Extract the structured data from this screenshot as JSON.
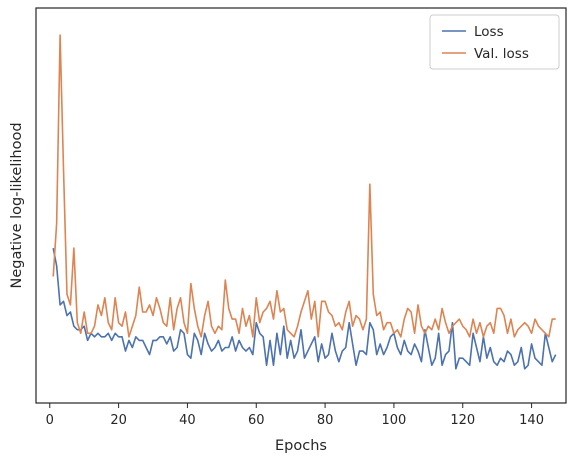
{
  "chart_data": {
    "type": "line",
    "xlabel": "Epochs",
    "ylabel": "Negative log-likelihood",
    "xlim": [
      -4,
      150
    ],
    "ylim": [
      0,
      1
    ],
    "x_ticks": [
      0,
      20,
      40,
      60,
      80,
      100,
      120,
      140
    ],
    "y_ticks_visible": false,
    "grid": false,
    "legend": "top-right",
    "x": [
      1,
      2,
      3,
      4,
      5,
      6,
      7,
      8,
      9,
      10,
      11,
      12,
      13,
      14,
      15,
      16,
      17,
      18,
      19,
      20,
      21,
      22,
      23,
      24,
      25,
      26,
      27,
      28,
      29,
      30,
      31,
      32,
      33,
      34,
      35,
      36,
      37,
      38,
      39,
      40,
      41,
      42,
      43,
      44,
      45,
      46,
      47,
      48,
      49,
      50,
      51,
      52,
      53,
      54,
      55,
      56,
      57,
      58,
      59,
      60,
      61,
      62,
      63,
      64,
      65,
      66,
      67,
      68,
      69,
      70,
      71,
      72,
      73,
      74,
      75,
      76,
      77,
      78,
      79,
      80,
      81,
      82,
      83,
      84,
      85,
      86,
      87,
      88,
      89,
      90,
      91,
      92,
      93,
      94,
      95,
      96,
      97,
      98,
      99,
      100,
      101,
      102,
      103,
      104,
      105,
      106,
      107,
      108,
      109,
      110,
      111,
      112,
      113,
      114,
      115,
      116,
      117,
      118,
      119,
      120,
      121,
      122,
      123,
      124,
      125,
      126,
      127,
      128,
      129,
      130,
      131,
      132,
      133,
      134,
      135,
      136,
      137,
      138,
      139,
      140,
      141,
      142,
      143,
      144,
      145,
      146,
      147
    ],
    "series": [
      {
        "name": "Loss",
        "color": "#4c72b0",
        "values": [
          0.38,
          0.33,
          0.22,
          0.23,
          0.19,
          0.2,
          0.16,
          0.15,
          0.15,
          0.16,
          0.12,
          0.14,
          0.13,
          0.14,
          0.13,
          0.13,
          0.14,
          0.12,
          0.14,
          0.13,
          0.13,
          0.09,
          0.12,
          0.1,
          0.13,
          0.12,
          0.12,
          0.1,
          0.08,
          0.12,
          0.12,
          0.13,
          0.13,
          0.11,
          0.13,
          0.09,
          0.1,
          0.15,
          0.14,
          0.08,
          0.07,
          0.14,
          0.12,
          0.08,
          0.14,
          0.11,
          0.09,
          0.1,
          0.12,
          0.09,
          0.1,
          0.1,
          0.13,
          0.09,
          0.12,
          0.1,
          0.09,
          0.1,
          0.08,
          0.17,
          0.14,
          0.13,
          0.05,
          0.12,
          0.05,
          0.14,
          0.08,
          0.16,
          0.07,
          0.12,
          0.07,
          0.09,
          0.15,
          0.07,
          0.09,
          0.11,
          0.13,
          0.06,
          0.11,
          0.07,
          0.08,
          0.14,
          0.09,
          0.06,
          0.09,
          0.1,
          0.17,
          0.11,
          0.05,
          0.09,
          0.09,
          0.08,
          0.17,
          0.15,
          0.08,
          0.11,
          0.08,
          0.1,
          0.13,
          0.14,
          0.1,
          0.08,
          0.12,
          0.09,
          0.08,
          0.11,
          0.09,
          0.06,
          0.15,
          0.1,
          0.05,
          0.07,
          0.14,
          0.05,
          0.08,
          0.09,
          0.17,
          0.04,
          0.07,
          0.07,
          0.06,
          0.05,
          0.14,
          0.1,
          0.06,
          0.13,
          0.07,
          0.1,
          0.06,
          0.05,
          0.07,
          0.06,
          0.09,
          0.08,
          0.05,
          0.06,
          0.1,
          0.04,
          0.05,
          0.11,
          0.07,
          0.06,
          0.05,
          0.14,
          0.1,
          0.06,
          0.08
        ]
      },
      {
        "name": "Val. loss",
        "color": "#dd8452",
        "values": [
          0.3,
          0.45,
          0.98,
          0.6,
          0.25,
          0.22,
          0.38,
          0.17,
          0.14,
          0.2,
          0.14,
          0.14,
          0.16,
          0.22,
          0.19,
          0.24,
          0.17,
          0.15,
          0.24,
          0.17,
          0.16,
          0.2,
          0.13,
          0.16,
          0.19,
          0.27,
          0.2,
          0.2,
          0.22,
          0.19,
          0.24,
          0.21,
          0.17,
          0.16,
          0.24,
          0.15,
          0.21,
          0.24,
          0.17,
          0.14,
          0.28,
          0.21,
          0.16,
          0.13,
          0.19,
          0.23,
          0.16,
          0.14,
          0.16,
          0.15,
          0.29,
          0.21,
          0.18,
          0.18,
          0.14,
          0.21,
          0.16,
          0.19,
          0.13,
          0.24,
          0.17,
          0.2,
          0.21,
          0.23,
          0.18,
          0.26,
          0.2,
          0.21,
          0.15,
          0.14,
          0.13,
          0.16,
          0.2,
          0.23,
          0.26,
          0.18,
          0.23,
          0.13,
          0.23,
          0.23,
          0.2,
          0.19,
          0.16,
          0.17,
          0.15,
          0.2,
          0.23,
          0.16,
          0.19,
          0.18,
          0.15,
          0.18,
          0.56,
          0.25,
          0.19,
          0.2,
          0.15,
          0.17,
          0.17,
          0.14,
          0.15,
          0.13,
          0.18,
          0.21,
          0.2,
          0.14,
          0.22,
          0.16,
          0.14,
          0.16,
          0.15,
          0.18,
          0.15,
          0.21,
          0.17,
          0.14,
          0.16,
          0.17,
          0.18,
          0.16,
          0.15,
          0.13,
          0.18,
          0.14,
          0.17,
          0.13,
          0.16,
          0.17,
          0.14,
          0.21,
          0.21,
          0.19,
          0.14,
          0.18,
          0.13,
          0.15,
          0.16,
          0.17,
          0.16,
          0.14,
          0.18,
          0.16,
          0.15,
          0.14,
          0.13,
          0.18,
          0.18
        ]
      }
    ]
  }
}
